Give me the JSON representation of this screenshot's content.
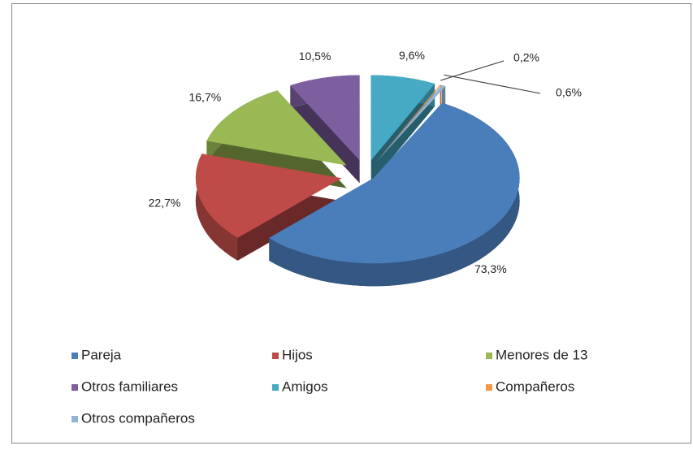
{
  "chart_data": {
    "type": "pie",
    "categories": [
      "Pareja",
      "Hijos",
      "Menores de 13",
      "Otros familiares",
      "Amigos",
      "Compañeros",
      "Otros compañeros"
    ],
    "values": [
      73.3,
      22.7,
      16.7,
      10.5,
      9.6,
      0.2,
      0.6
    ],
    "value_labels": [
      "73,3%",
      "22,7%",
      "16,7%",
      "10,5%",
      "9,6%",
      "0,2%",
      "0,6%"
    ],
    "colors": [
      "#4a7ebb",
      "#be4b48",
      "#98b954",
      "#7d5fa0",
      "#46aac5",
      "#f79646",
      "#95b3d7"
    ],
    "legend": "bottom"
  }
}
